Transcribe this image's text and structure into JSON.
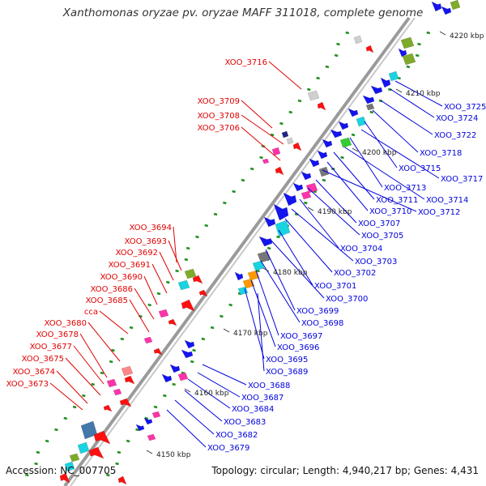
{
  "title": "Xanthomonas oryzae pv. oryzae MAFF 311018, complete genome",
  "footer": {
    "accession": "Accession: NC_007705",
    "summary": "Topology: circular; Length: 4,940,217 bp; Genes: 4,431"
  },
  "colors": {
    "backbone": "#9a9a9a",
    "gc_tick": "#1f8f1f",
    "left_label": "#e00000",
    "right_label": "#0000dd",
    "scale_text": "#222222",
    "gene_red": "#ff1010",
    "gene_blue": "#1414f0",
    "gene_pink": "#ff33aa",
    "gene_cyan": "#19d4e0",
    "gene_olive": "#7faa2a",
    "gene_gray": "#777777",
    "gene_lightgray": "#cfcfcf",
    "gene_orange": "#ff9900",
    "gene_steel": "#4477aa",
    "gene_green": "#33cc33",
    "gene_navy": "#222288",
    "gene_salmon": "#ff8888"
  },
  "scale_labels": [
    "4220 kbp",
    "4210 kbp",
    "4200 kbp",
    "4190 kbp",
    "4180 kbp",
    "4170 kbp",
    "4160 kbp",
    "4150 kbp"
  ],
  "left_labels": [
    "XOO_3716",
    "XOO_3709",
    "XOO_3708",
    "XOO_3706",
    "XOO_3694",
    "XOO_3693",
    "XOO_3692",
    "XOO_3691",
    "XOO_3690",
    "XOO_3686",
    "XOO_3685",
    "cca",
    "XOO_3680",
    "XOO_3678",
    "XOO_3677",
    "XOO_3675",
    "XOO_3674",
    "XOO_3673"
  ],
  "right_labels": [
    "XOO_3725",
    "XOO_3724",
    "XOO_3722",
    "XOO_3718",
    "XOO_3715",
    "XOO_3717",
    "XOO_3713",
    "XOO_3714",
    "XOO_3711",
    "XOO_3710",
    "XOO_3712",
    "XOO_3707",
    "XOO_3705",
    "XOO_3704",
    "XOO_3703",
    "XOO_3702",
    "XOO_3701",
    "XOO_3700",
    "XOO_3699",
    "XOO_3698",
    "XOO_3697",
    "XOO_3696",
    "XOO_3695",
    "XOO_3689",
    "XOO_3688",
    "XOO_3687",
    "XOO_3684",
    "XOO_3683",
    "XOO_3682",
    "XOO_3679"
  ]
}
